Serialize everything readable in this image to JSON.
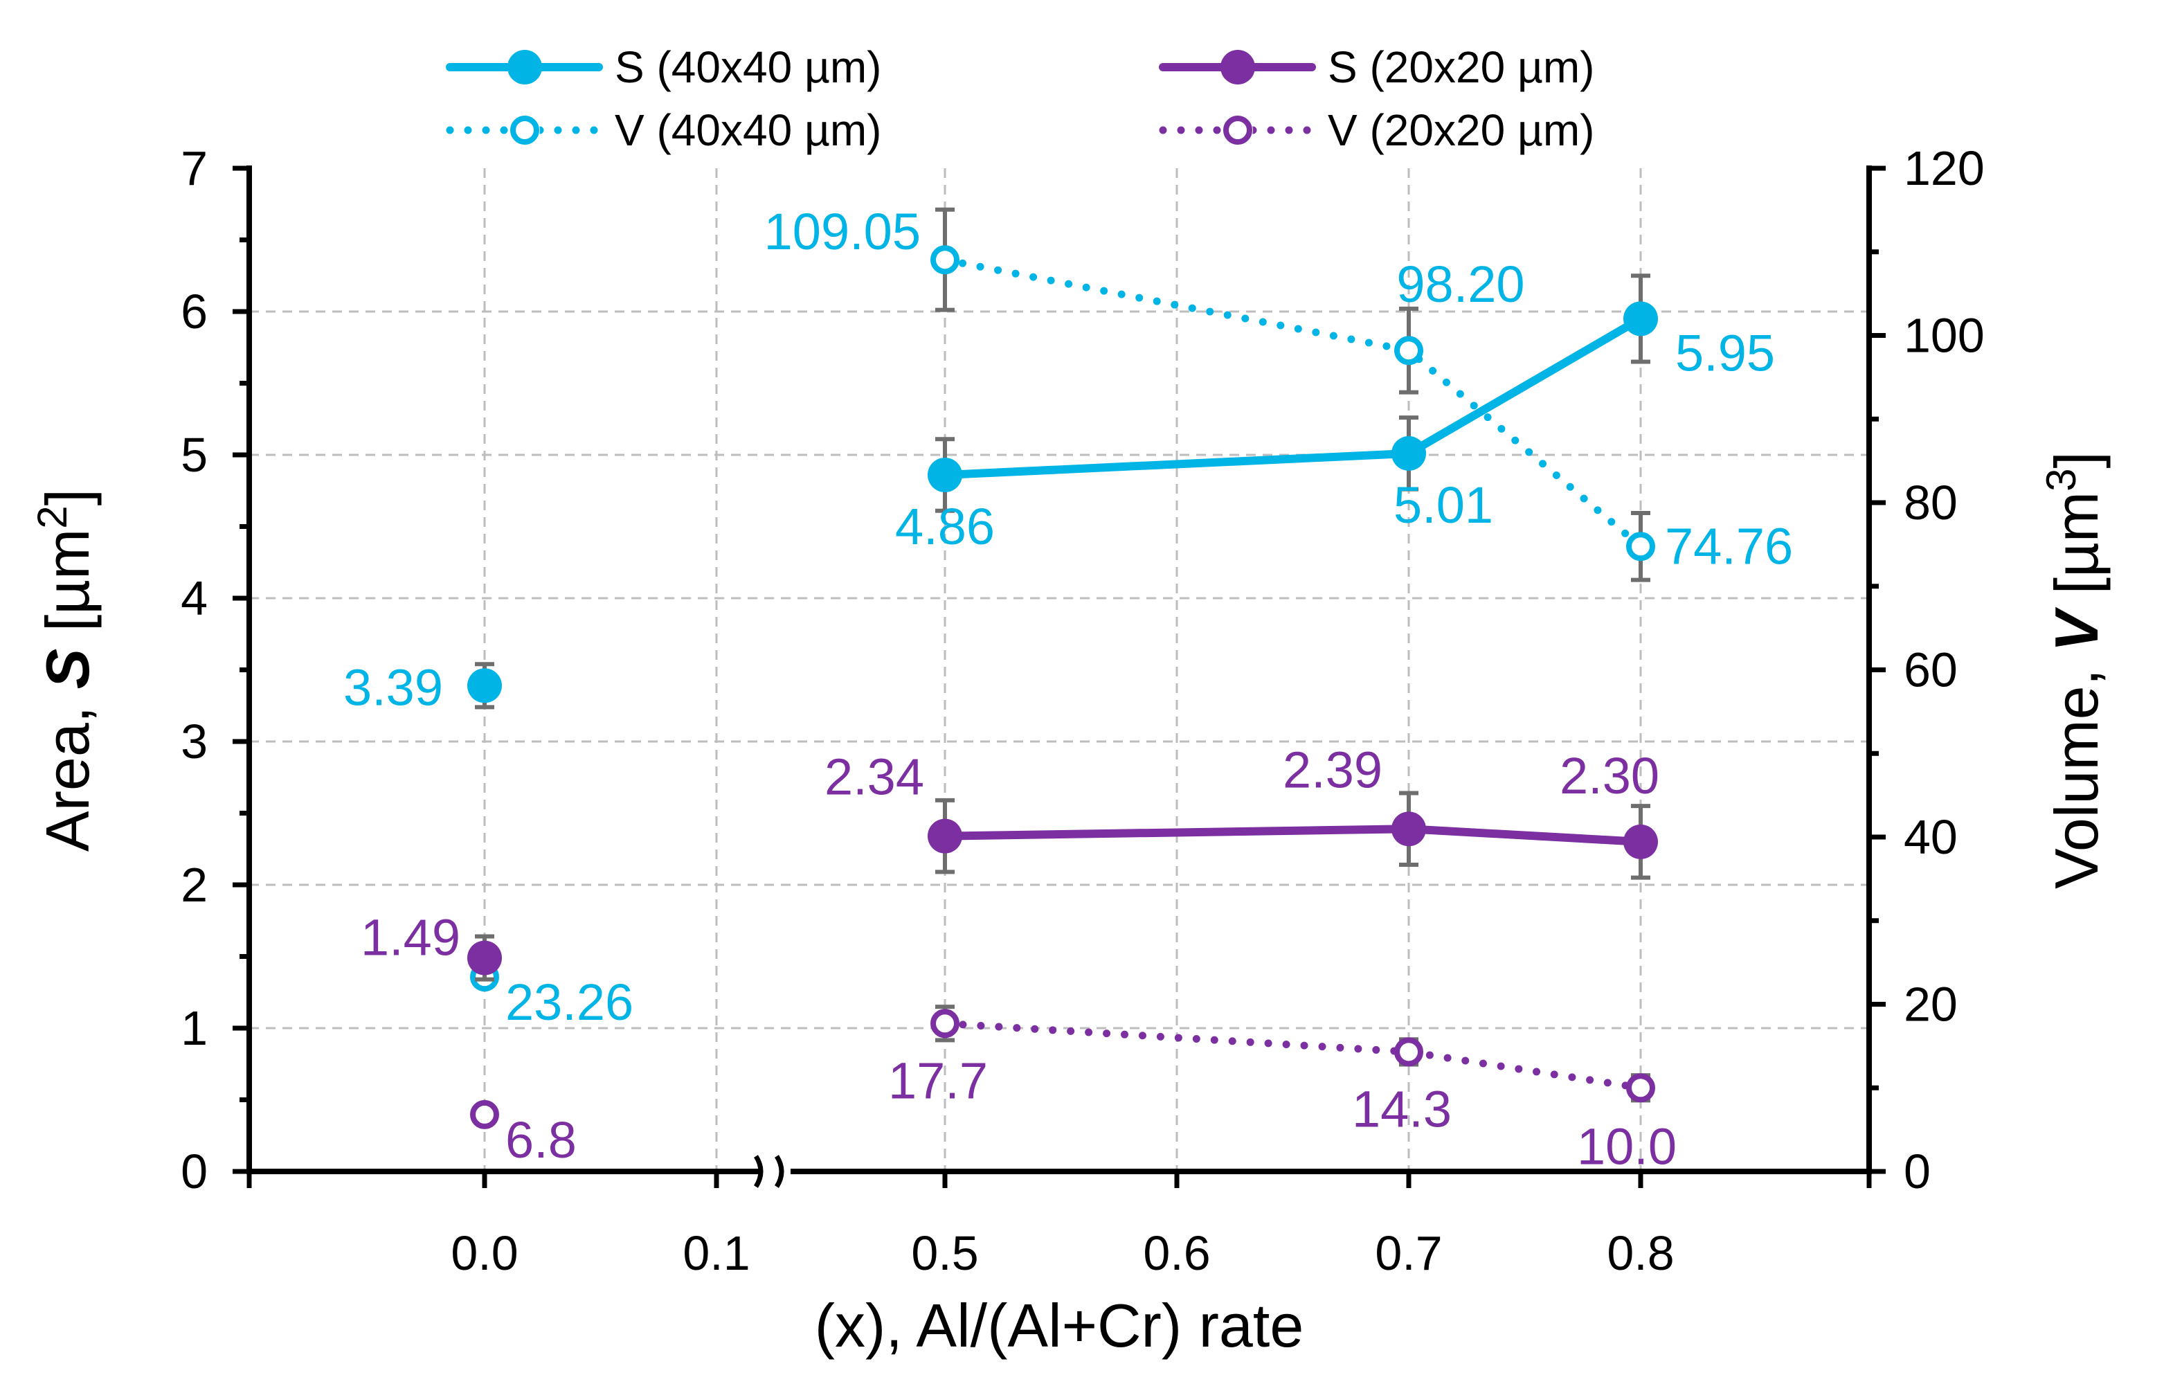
{
  "chart_data": {
    "type": "line",
    "x_tick_labels": [
      "0.0",
      "0.1",
      "0.5",
      "0.6",
      "0.7",
      "0.8"
    ],
    "xlabel": "(x), Al/(Al+Cr) rate",
    "ylabel_left": {
      "prefix": "Area, ",
      "symbol": "S",
      "unit": " [µm",
      "exp": "2",
      "close": "]"
    },
    "ylabel_right": {
      "prefix": "Volume, ",
      "symbol": "V",
      "unit": " [µm",
      "exp": "3",
      "close": "]"
    },
    "ylim_left": [
      0,
      7
    ],
    "ylim_right": [
      0,
      120
    ],
    "y_ticks_left": [
      "0",
      "1",
      "2",
      "3",
      "4",
      "5",
      "6",
      "7"
    ],
    "y_ticks_right": [
      "0",
      "20",
      "40",
      "60",
      "80",
      "100",
      "120"
    ],
    "axis_break_after": "0.1",
    "grid": true,
    "legend_position": "top",
    "series": [
      {
        "name": "S (40x40 µm)",
        "axis": "left",
        "style": "solid",
        "marker": "filled",
        "color": "#00b4e6",
        "points": [
          {
            "x": "0.0",
            "y": 3.39,
            "err": 0.15,
            "label": "3.39",
            "connect": false
          },
          {
            "x": "0.5",
            "y": 4.86,
            "err": 0.25,
            "label": "4.86",
            "connect": true
          },
          {
            "x": "0.7",
            "y": 5.01,
            "err": 0.25,
            "label": "5.01",
            "connect": true
          },
          {
            "x": "0.8",
            "y": 5.95,
            "err": 0.3,
            "label": "5.95",
            "connect": true
          }
        ]
      },
      {
        "name": "V (40x40 µm)",
        "axis": "right",
        "style": "dotted",
        "marker": "open",
        "color": "#00b4e6",
        "points": [
          {
            "x": "0.0",
            "y": 23.26,
            "err": 0,
            "label": "23.26",
            "connect": false
          },
          {
            "x": "0.5",
            "y": 109.05,
            "err": 6,
            "label": "109.05",
            "connect": true
          },
          {
            "x": "0.7",
            "y": 98.2,
            "err": 5,
            "label": "98.20",
            "connect": true
          },
          {
            "x": "0.8",
            "y": 74.76,
            "err": 4,
            "label": "74.76",
            "connect": true
          }
        ]
      },
      {
        "name": "S (20x20 µm)",
        "axis": "left",
        "style": "solid",
        "marker": "filled",
        "color": "#7b2fa0",
        "points": [
          {
            "x": "0.0",
            "y": 1.49,
            "err": 0.15,
            "label": "1.49",
            "connect": false
          },
          {
            "x": "0.5",
            "y": 2.34,
            "err": 0.25,
            "label": "2.34",
            "connect": true
          },
          {
            "x": "0.7",
            "y": 2.39,
            "err": 0.25,
            "label": "2.39",
            "connect": true
          },
          {
            "x": "0.8",
            "y": 2.3,
            "err": 0.25,
            "label": "2.30",
            "connect": true
          }
        ]
      },
      {
        "name": "V (20x20 µm)",
        "axis": "right",
        "style": "dotted",
        "marker": "open",
        "color": "#7b2fa0",
        "points": [
          {
            "x": "0.0",
            "y": 6.8,
            "err": 0,
            "label": "6.8",
            "connect": false
          },
          {
            "x": "0.5",
            "y": 17.7,
            "err": 2,
            "label": "17.7",
            "connect": true
          },
          {
            "x": "0.7",
            "y": 14.3,
            "err": 1.5,
            "label": "14.3",
            "connect": true
          },
          {
            "x": "0.8",
            "y": 10.0,
            "err": 1.5,
            "label": "10.0",
            "connect": true
          }
        ]
      }
    ]
  }
}
